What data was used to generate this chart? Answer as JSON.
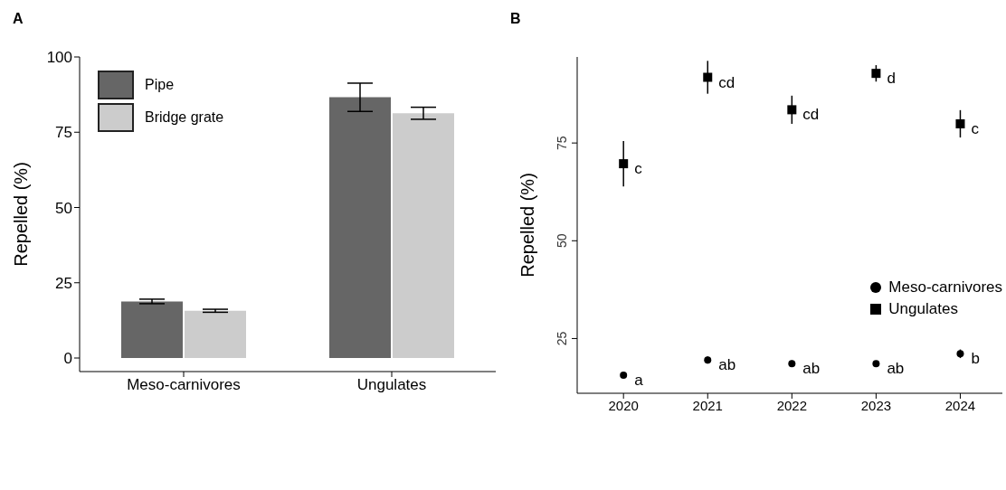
{
  "chart_data": [
    {
      "type": "bar",
      "title": "A",
      "ylabel": "Repelled (%)",
      "categories": [
        "Meso-carnivores",
        "Ungulates"
      ],
      "series": [
        {
          "name": "Pipe",
          "color": "#666666",
          "values": [
            18.8,
            86.6
          ],
          "errors": [
            0.75,
            4.7
          ]
        },
        {
          "name": "Bridge grate",
          "color": "#cccccc",
          "values": [
            15.7,
            81.3
          ],
          "errors": [
            0.5,
            2
          ]
        }
      ],
      "ylim": [
        -4.5,
        100
      ],
      "yticks": [
        0,
        25,
        50,
        75,
        100
      ],
      "legend": "top left"
    },
    {
      "type": "scatter",
      "title": "B",
      "ylabel": "Repelled (%)",
      "categories": [
        "2020",
        "2021",
        "2022",
        "2023",
        "2024"
      ],
      "series": [
        {
          "name": "Meso-carnivores",
          "color": "#000000",
          "marker": "circle",
          "values": [
            15.6,
            19.5,
            18.6,
            18.6,
            21.1
          ],
          "errors": [
            0.3,
            0.9,
            0.8,
            0.4,
            1.1
          ]
        },
        {
          "name": "Ungulates",
          "color": "#000000",
          "marker": "square",
          "values": [
            69.7,
            91.8,
            83.5,
            92.8,
            79.9
          ],
          "errors": [
            5.8,
            4.2,
            3.6,
            2.1,
            3.5
          ]
        }
      ],
      "ylim": [
        11,
        97
      ],
      "yticks": [
        25,
        50,
        75
      ],
      "legend": "right",
      "annotations": [
        {
          "text": "a",
          "x": "2020",
          "y": 15.6
        },
        {
          "text": "ab",
          "x": "2021",
          "y": 19.5
        },
        {
          "text": "ab",
          "x": "2022",
          "y": 18.6
        },
        {
          "text": "ab",
          "x": "2023",
          "y": 18.6
        },
        {
          "text": "b",
          "x": "2024",
          "y": 21.1
        },
        {
          "text": "c",
          "x": "2020",
          "y": 69.7
        },
        {
          "text": "cd",
          "x": "2021",
          "y": 91.8
        },
        {
          "text": "cd",
          "x": "2022",
          "y": 83.5
        },
        {
          "text": "d",
          "x": "2023",
          "y": 92.8
        },
        {
          "text": "c",
          "x": "2024",
          "y": 79.9
        }
      ]
    }
  ]
}
